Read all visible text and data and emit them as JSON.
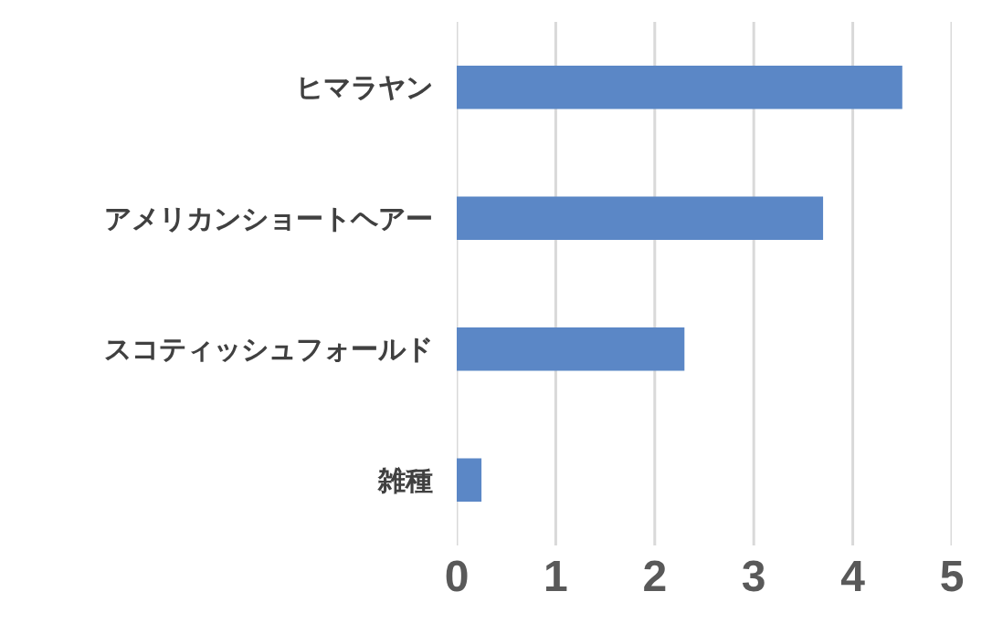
{
  "chart_data": {
    "type": "bar",
    "orientation": "horizontal",
    "categories": [
      "ヒマラヤン",
      "アメリカンショートヘアー",
      "スコティッシュフォールド",
      "雑種"
    ],
    "values": [
      4.5,
      3.7,
      2.3,
      0.25
    ],
    "color": "#5b87c6",
    "xlim": [
      0,
      5
    ],
    "xticks": [
      0,
      1,
      2,
      3,
      4,
      5
    ],
    "grid": "x"
  }
}
